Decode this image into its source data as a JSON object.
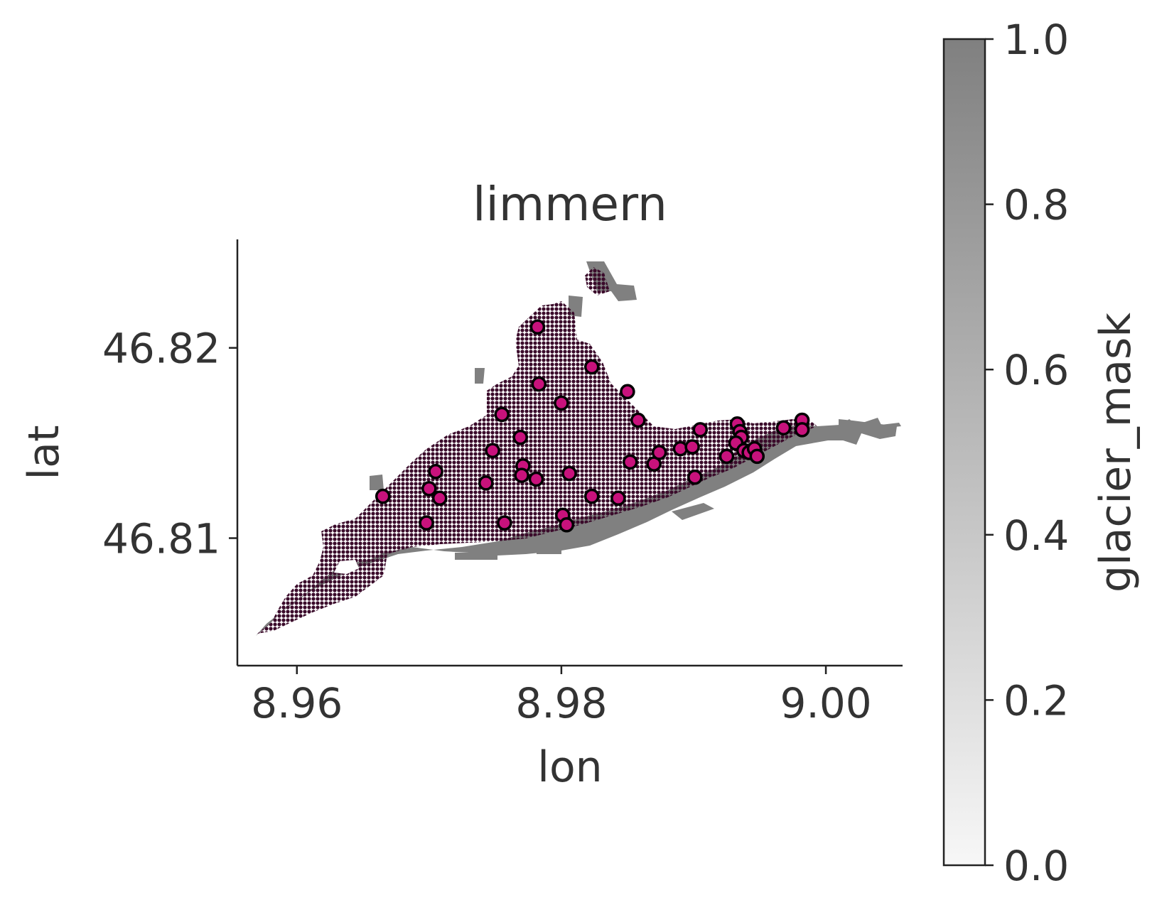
{
  "chart_data": {
    "type": "scatter",
    "title": "limmern",
    "xlabel": "lon",
    "ylabel": "lat",
    "xlim": [
      8.9555,
      9.0058
    ],
    "ylim": [
      46.8033,
      46.8257
    ],
    "xticks": [
      {
        "value": 8.96,
        "label": "8.96"
      },
      {
        "value": 8.98,
        "label": "8.98"
      },
      {
        "value": 9.0,
        "label": "9.00"
      }
    ],
    "yticks": [
      {
        "value": 46.81,
        "label": "46.81"
      },
      {
        "value": 46.82,
        "label": "46.82"
      }
    ],
    "grid": false,
    "colorbar": {
      "label": "glacier_mask",
      "range": [
        0.0,
        1.0
      ],
      "ticks": [
        {
          "value": 0.0,
          "label": "0.0"
        },
        {
          "value": 0.2,
          "label": "0.2"
        },
        {
          "value": 0.4,
          "label": "0.4"
        },
        {
          "value": 0.6,
          "label": "0.6"
        },
        {
          "value": 0.8,
          "label": "0.8"
        },
        {
          "value": 1.0,
          "label": "1.0"
        }
      ],
      "colors": [
        "#f7f7f7",
        "#808080"
      ]
    },
    "background": {
      "mask_value": 1.0,
      "mask_color": "#808080",
      "gradient_colors": [
        "#3a0a2a",
        "#8c1c4a",
        "#c8684e",
        "#e6d7dc",
        "#a8c4cf",
        "#6a80c2",
        "#5a2f9c",
        "#2a0a3a"
      ]
    },
    "points": {
      "color": "#c8127c",
      "edge_color": "#000000",
      "x": [
        8.9665,
        8.9705,
        8.97,
        8.9708,
        8.9698,
        8.9748,
        8.9743,
        8.9755,
        8.9757,
        8.9771,
        8.977,
        8.9769,
        8.9782,
        8.9783,
        8.9781,
        8.98,
        8.9806,
        8.9801,
        8.9804,
        8.9823,
        8.9823,
        8.985,
        8.9858,
        8.9852,
        8.9843,
        8.987,
        8.9874,
        8.989,
        8.9899,
        8.9905,
        8.9901,
        8.9925,
        8.9933,
        8.9935,
        8.9936,
        8.9932,
        8.9938,
        8.9942,
        8.9946,
        8.9948,
        8.9968,
        8.9982,
        8.9982
      ],
      "y": [
        46.8122,
        46.8135,
        46.8126,
        46.8121,
        46.8108,
        46.8146,
        46.8129,
        46.8165,
        46.8108,
        46.8138,
        46.8133,
        46.8153,
        46.8211,
        46.8181,
        46.8131,
        46.8171,
        46.8134,
        46.8112,
        46.8107,
        46.819,
        46.8122,
        46.8177,
        46.8162,
        46.814,
        46.8121,
        46.8139,
        46.8145,
        46.8147,
        46.8148,
        46.8157,
        46.8132,
        46.8143,
        46.816,
        46.8156,
        46.8153,
        46.815,
        46.8146,
        46.8145,
        46.8147,
        46.8143,
        46.8158,
        46.8162,
        46.8157
      ]
    }
  }
}
